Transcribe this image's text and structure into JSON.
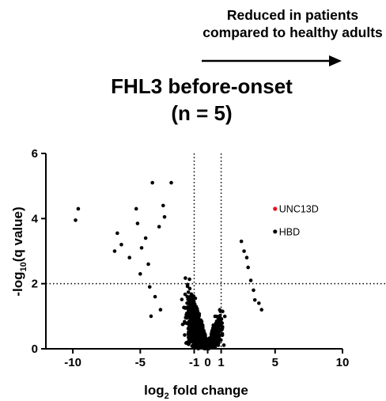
{
  "annotation": {
    "line1": "Reduced in patients",
    "line2": "compared to healthy adults"
  },
  "chart_data": {
    "type": "scatter",
    "title_line1": "FHL3 before-onset",
    "title_line2": "(n = 5)",
    "xlabel_main": "log",
    "xlabel_sub": "2",
    "xlabel_rest": " fold change",
    "ylabel_pre": "-log",
    "ylabel_sub": "10",
    "ylabel_post": "(q value)",
    "xlim": [
      -12,
      10
    ],
    "ylim": [
      0,
      6
    ],
    "xticks": [
      -10,
      -5,
      -1,
      0,
      1,
      5,
      10
    ],
    "xtick_labels": [
      "-10",
      "-5",
      "-1",
      "0",
      "1",
      "5",
      "10"
    ],
    "yticks": [
      0,
      2,
      4,
      6
    ],
    "ytick_labels": [
      "0",
      "2",
      "4",
      "6"
    ],
    "threshold_x": [
      -1,
      1
    ],
    "threshold_y": 2,
    "point_color": "#000000",
    "highlight_color": "#e8111e",
    "highlighted": [
      {
        "label": "UNC13D",
        "x": 5.0,
        "y": 4.3,
        "color": "#e8111e"
      },
      {
        "label": "HBD",
        "x": 5.0,
        "y": 3.6,
        "color": "#000000"
      }
    ],
    "points": [
      {
        "x": -9.6,
        "y": 4.3
      },
      {
        "x": -9.8,
        "y": 3.95
      },
      {
        "x": -6.7,
        "y": 3.55
      },
      {
        "x": -6.4,
        "y": 3.2
      },
      {
        "x": -6.9,
        "y": 3.0
      },
      {
        "x": -5.3,
        "y": 4.3
      },
      {
        "x": -4.1,
        "y": 5.1
      },
      {
        "x": -2.7,
        "y": 5.1
      },
      {
        "x": -5.2,
        "y": 3.85
      },
      {
        "x": -5.8,
        "y": 2.8
      },
      {
        "x": -4.6,
        "y": 3.4
      },
      {
        "x": -4.9,
        "y": 3.1
      },
      {
        "x": -5.0,
        "y": 2.3
      },
      {
        "x": -4.4,
        "y": 2.6
      },
      {
        "x": -3.3,
        "y": 4.4
      },
      {
        "x": -3.2,
        "y": 4.05
      },
      {
        "x": -3.6,
        "y": 3.75
      },
      {
        "x": -4.3,
        "y": 1.9
      },
      {
        "x": -3.9,
        "y": 1.6
      },
      {
        "x": -3.5,
        "y": 1.2
      },
      {
        "x": -4.2,
        "y": 1.0
      },
      {
        "x": 3.8,
        "y": 1.4
      },
      {
        "x": 4.0,
        "y": 1.2
      },
      {
        "x": 3.5,
        "y": 1.5
      },
      {
        "x": 3.0,
        "y": 2.5
      },
      {
        "x": 3.2,
        "y": 2.1
      },
      {
        "x": 2.7,
        "y": 3.0
      },
      {
        "x": 2.9,
        "y": 2.8
      },
      {
        "x": 3.4,
        "y": 1.8
      },
      {
        "x": 2.5,
        "y": 3.3
      }
    ]
  }
}
